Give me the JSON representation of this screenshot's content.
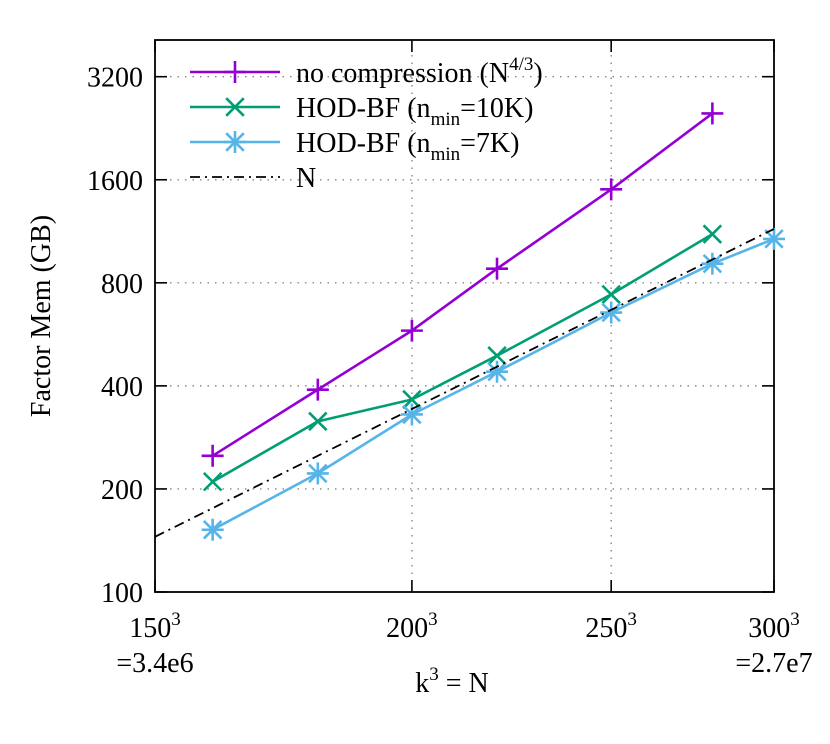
{
  "chart_data": {
    "type": "line",
    "xscale": "log",
    "yscale": "log",
    "xlim": [
      3375000,
      27000000
    ],
    "ylim": [
      100,
      4096
    ],
    "grid": true,
    "legend_position": "top-left",
    "ylabel": "Factor Mem (GB)",
    "xlabel": {
      "prefix": "k",
      "superscript": "3",
      "suffix": " = N"
    },
    "y_ticks": [
      {
        "value": 100,
        "label": "100"
      },
      {
        "value": 200,
        "label": "200"
      },
      {
        "value": 400,
        "label": "400"
      },
      {
        "value": 800,
        "label": "800"
      },
      {
        "value": 1600,
        "label": "1600"
      },
      {
        "value": 3200,
        "label": "3200"
      }
    ],
    "x_ticks": [
      {
        "value": 3375000,
        "base": "150",
        "sup": "3",
        "second_line": "=3.4e6"
      },
      {
        "value": 8000000,
        "base": "200",
        "sup": "3",
        "second_line": ""
      },
      {
        "value": 15625000,
        "base": "250",
        "sup": "3",
        "second_line": ""
      },
      {
        "value": 27000000,
        "base": "300",
        "sup": "3",
        "second_line": "=2.7e7"
      }
    ],
    "series": [
      {
        "name": "no compression (N4/3)",
        "legend": {
          "prefix": "no compression (N",
          "sup": "4/3",
          "suffix": ")"
        },
        "color": "#9400d3",
        "marker": "plus",
        "dash": "",
        "x": [
          4096000,
          5832000,
          8000000,
          10648000,
          15625000,
          21952000
        ],
        "y": [
          250,
          390,
          580,
          880,
          1500,
          2500
        ]
      },
      {
        "name": "HOD-BF (nmin=10K)",
        "legend": {
          "prefix": "HOD-BF (n",
          "sub": "min",
          "suffix": "=10K)"
        },
        "color": "#009e73",
        "marker": "x",
        "dash": "",
        "x": [
          4096000,
          5832000,
          8000000,
          10648000,
          15625000,
          21952000
        ],
        "y": [
          210,
          315,
          365,
          490,
          740,
          1110
        ]
      },
      {
        "name": "HOD-BF (nmin=7K)",
        "legend": {
          "prefix": "HOD-BF (n",
          "sub": "min",
          "suffix": "=7K)"
        },
        "color": "#56b4e9",
        "marker": "star",
        "dash": "",
        "x": [
          4096000,
          5832000,
          8000000,
          10648000,
          15625000,
          21952000,
          27000000
        ],
        "y": [
          152,
          222,
          330,
          440,
          655,
          910,
          1075
        ]
      },
      {
        "name": "N",
        "legend": {
          "prefix": "N",
          "suffix": ""
        },
        "color": "#000000",
        "marker": "none",
        "dash": "10 5 2 5",
        "x": [
          3375000,
          27000000
        ],
        "y": [
          145,
          1150
        ]
      }
    ]
  }
}
